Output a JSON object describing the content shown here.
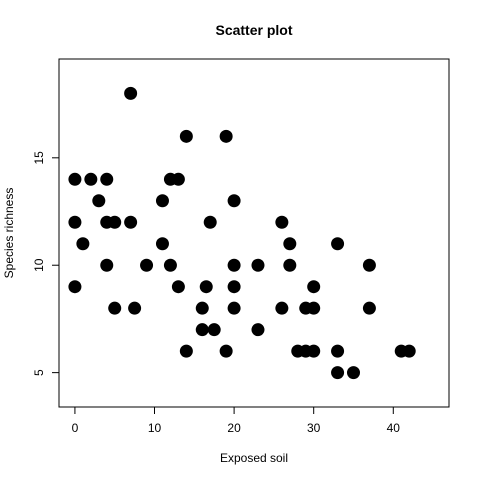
{
  "chart_data": {
    "type": "scatter",
    "title": "Scatter plot",
    "xlabel": "Exposed soil",
    "ylabel": "Species richness",
    "xlim": [
      -2,
      47
    ],
    "ylim": [
      3.4,
      19.6
    ],
    "xticks": [
      0,
      10,
      20,
      30,
      40
    ],
    "yticks": [
      5,
      10,
      15
    ],
    "grid": false,
    "points": [
      {
        "x": 0,
        "y": 14
      },
      {
        "x": 0,
        "y": 12
      },
      {
        "x": 0,
        "y": 9
      },
      {
        "x": 1,
        "y": 11
      },
      {
        "x": 2,
        "y": 14
      },
      {
        "x": 3,
        "y": 13
      },
      {
        "x": 4,
        "y": 14
      },
      {
        "x": 4,
        "y": 12
      },
      {
        "x": 4,
        "y": 10
      },
      {
        "x": 5,
        "y": 12
      },
      {
        "x": 5,
        "y": 8
      },
      {
        "x": 7,
        "y": 18
      },
      {
        "x": 7,
        "y": 12
      },
      {
        "x": 7.5,
        "y": 8
      },
      {
        "x": 9,
        "y": 10
      },
      {
        "x": 11,
        "y": 13
      },
      {
        "x": 11,
        "y": 11
      },
      {
        "x": 12,
        "y": 14
      },
      {
        "x": 12,
        "y": 10
      },
      {
        "x": 13,
        "y": 14
      },
      {
        "x": 13,
        "y": 9
      },
      {
        "x": 14,
        "y": 16
      },
      {
        "x": 14,
        "y": 6
      },
      {
        "x": 16,
        "y": 8
      },
      {
        "x": 16,
        "y": 7
      },
      {
        "x": 16.5,
        "y": 9
      },
      {
        "x": 17,
        "y": 12
      },
      {
        "x": 17.5,
        "y": 7
      },
      {
        "x": 19,
        "y": 16
      },
      {
        "x": 19,
        "y": 6
      },
      {
        "x": 20,
        "y": 13
      },
      {
        "x": 20,
        "y": 10
      },
      {
        "x": 20,
        "y": 9
      },
      {
        "x": 20,
        "y": 8
      },
      {
        "x": 23,
        "y": 10
      },
      {
        "x": 23,
        "y": 7
      },
      {
        "x": 26,
        "y": 12
      },
      {
        "x": 26,
        "y": 8
      },
      {
        "x": 27,
        "y": 11
      },
      {
        "x": 27,
        "y": 10
      },
      {
        "x": 28,
        "y": 6
      },
      {
        "x": 29,
        "y": 8
      },
      {
        "x": 29,
        "y": 6
      },
      {
        "x": 30,
        "y": 9
      },
      {
        "x": 30,
        "y": 8
      },
      {
        "x": 30,
        "y": 6
      },
      {
        "x": 33,
        "y": 11
      },
      {
        "x": 33,
        "y": 6
      },
      {
        "x": 33,
        "y": 5
      },
      {
        "x": 35,
        "y": 5
      },
      {
        "x": 37,
        "y": 10
      },
      {
        "x": 37,
        "y": 8
      },
      {
        "x": 41,
        "y": 6
      },
      {
        "x": 42,
        "y": 6
      }
    ],
    "point_color": "#000000"
  }
}
